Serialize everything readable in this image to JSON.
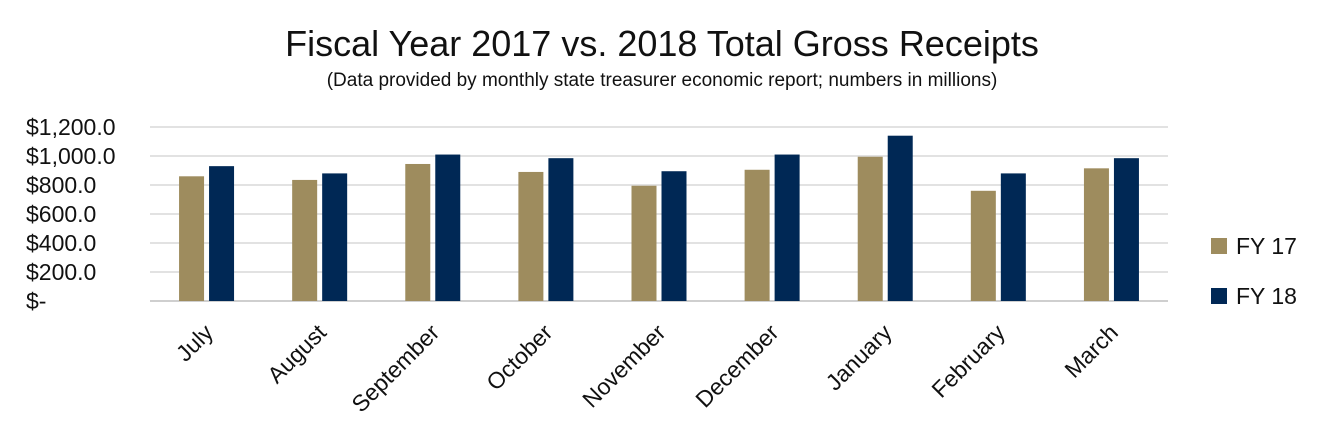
{
  "chart_data": {
    "type": "bar",
    "title": "Fiscal Year 2017 vs. 2018 Total Gross Receipts",
    "subtitle": "(Data provided by monthly state treasurer economic report; numbers in millions)",
    "xlabel": "",
    "ylabel": "",
    "ylim": [
      0,
      1200
    ],
    "yticks": [
      {
        "value": 1200,
        "label": "$1,200.0"
      },
      {
        "value": 1000,
        "label": "$1,000.0"
      },
      {
        "value": 800,
        "label": "$800.0"
      },
      {
        "value": 600,
        "label": "$600.0"
      },
      {
        "value": 400,
        "label": "$400.0"
      },
      {
        "value": 200,
        "label": "$200.0"
      },
      {
        "value": 0,
        "label": "$-"
      }
    ],
    "grid": true,
    "legend_position": "right",
    "categories": [
      "July",
      "August",
      "September",
      "October",
      "November",
      "December",
      "January",
      "February",
      "March"
    ],
    "series": [
      {
        "name": "FY 17",
        "color": "#9e8c5e",
        "values": [
          860,
          835,
          945,
          890,
          795,
          905,
          995,
          760,
          915
        ]
      },
      {
        "name": "FY 18",
        "color": "#002855",
        "values": [
          930,
          880,
          1010,
          985,
          895,
          1010,
          1140,
          880,
          985
        ]
      }
    ]
  }
}
